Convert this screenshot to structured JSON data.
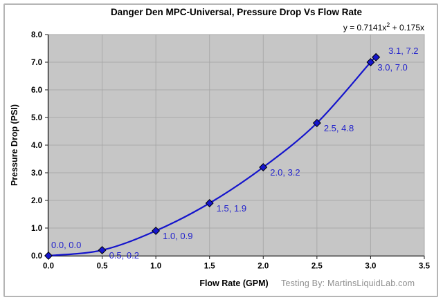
{
  "colors": {
    "series_blue": "#1414cc",
    "marker_fill": "#1515cd",
    "marker_outline": "#000000",
    "data_label_blue": "#2222cc",
    "plot_bg": "#c6c6c6",
    "grid": "#a9a9a9",
    "plot_border": "#8c8c8c",
    "axis": "#1a1a1a",
    "tick_label": "#000000",
    "footer_gray": "#8f8f8f",
    "frame_border": "#b5b5b5"
  },
  "chart_data": {
    "type": "line",
    "title": "Danger Den MPC-Universal, Pressure Drop Vs Flow Rate",
    "equation": {
      "prefix": "y = 0.7141x",
      "sup": "2",
      "suffix": " + 0.175x"
    },
    "xlabel": "Flow Rate (GPM)",
    "ylabel": "Pressure Drop (PSI)",
    "footer_credit": "Testing By: MartinsLiquidLab.com",
    "xlim": [
      0.0,
      3.5
    ],
    "ylim": [
      0.0,
      8.0
    ],
    "x_tick_step": 0.5,
    "y_tick_step": 1.0,
    "xticks": [
      "0.0",
      "0.5",
      "1.0",
      "1.5",
      "2.0",
      "2.5",
      "3.0",
      "3.5"
    ],
    "yticks": [
      "0.0",
      "1.0",
      "2.0",
      "3.0",
      "4.0",
      "5.0",
      "6.0",
      "7.0",
      "8.0"
    ],
    "grid": true,
    "legend": "none",
    "trendline": {
      "a": 0.7141,
      "b": 0.175,
      "c": 0
    },
    "series": [
      {
        "color": "#1414cc",
        "marker": "diamond",
        "points": [
          {
            "x": 0.0,
            "y": 0.0,
            "label": "0.0, 0.0",
            "label_placement": "above"
          },
          {
            "x": 0.5,
            "y": 0.2,
            "label": "0.5, 0.2",
            "label_placement": "right"
          },
          {
            "x": 1.0,
            "y": 0.9,
            "label": "1.0, 0.9",
            "label_placement": "right"
          },
          {
            "x": 1.5,
            "y": 1.9,
            "label": "1.5, 1.9",
            "label_placement": "right"
          },
          {
            "x": 2.0,
            "y": 3.2,
            "label": "2.0, 3.2",
            "label_placement": "right"
          },
          {
            "x": 2.5,
            "y": 4.8,
            "label": "2.5, 4.8",
            "label_placement": "right"
          },
          {
            "x": 3.0,
            "y": 7.0,
            "label": "3.0, 7.0",
            "label_placement": "right"
          },
          {
            "x": 3.05,
            "y": 7.18,
            "label": "3.1, 7.2",
            "label_placement": "upper-right"
          }
        ]
      }
    ]
  }
}
